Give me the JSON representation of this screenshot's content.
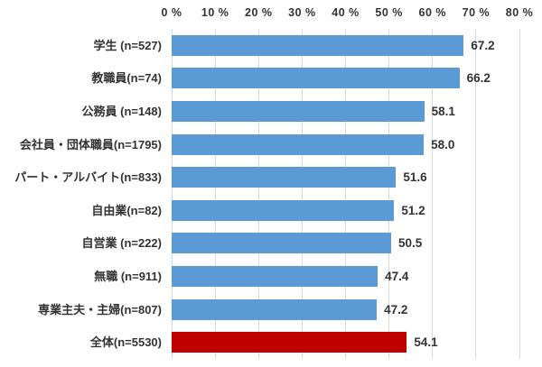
{
  "chart_data": {
    "type": "bar",
    "orientation": "horizontal",
    "title": "",
    "categories": [
      "学生 (n=527)",
      "教職員(n=74)",
      "公務員 (n=148)",
      "会社員・団体職員(n=1795)",
      "パート・アルバイト(n=833)",
      "自由業(n=82)",
      "自営業 (n=222)",
      "無職 (n=911)",
      "専業主夫・主婦(n=807)",
      "全体(n=5530)"
    ],
    "values": [
      67.2,
      66.2,
      58.1,
      58.0,
      51.6,
      51.2,
      50.5,
      47.4,
      47.2,
      54.1
    ],
    "value_labels": [
      "67.2",
      "66.2",
      "58.1",
      "58.0",
      "51.6",
      "51.2",
      "50.5",
      "47.4",
      "47.2",
      "54.1"
    ],
    "highlight_index": 9,
    "axis": {
      "position": "top",
      "min": 0,
      "max": 80,
      "step": 10,
      "tick_labels": [
        "0 %",
        "10 %",
        "20 %",
        "30 %",
        "40 %",
        "50 %",
        "60 %",
        "70 %",
        "80 %"
      ]
    },
    "grid": true,
    "legend": "none",
    "colors": {
      "bar_default": "#5B9BD5",
      "bar_total": "#C00000",
      "gridline": "#D9D9D9",
      "text": "#333333"
    }
  }
}
